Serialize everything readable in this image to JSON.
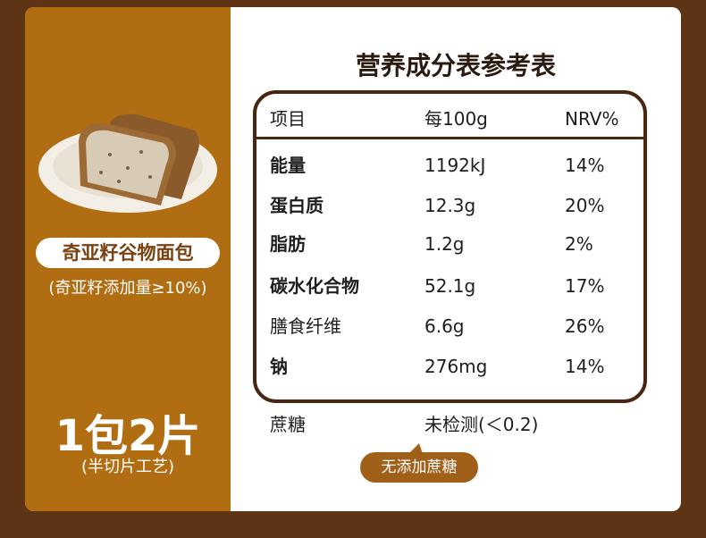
{
  "left": {
    "product": "奇亚籽谷物面包",
    "note": "(奇亚籽添加量≥10%)",
    "pack": "1包2片",
    "process": "(半切片工艺)"
  },
  "title": "营养成分表参考表",
  "table": {
    "header": [
      "项目",
      "每100g",
      "NRV%"
    ],
    "rows": [
      [
        "能量",
        "1192kJ",
        "14%"
      ],
      [
        "蛋白质",
        "12.3g",
        "20%"
      ],
      [
        "脂肪",
        "1.2g",
        "2%"
      ],
      [
        "碳水化合物",
        "52.1g",
        "17%"
      ],
      [
        "膳食纤维",
        "6.6g",
        "26%"
      ],
      [
        "钠",
        "276mg",
        "14%"
      ]
    ]
  },
  "sugar": {
    "name": "蔗糖",
    "value": "未检测(＜0.2)"
  },
  "badge": "无添加蔗糖"
}
